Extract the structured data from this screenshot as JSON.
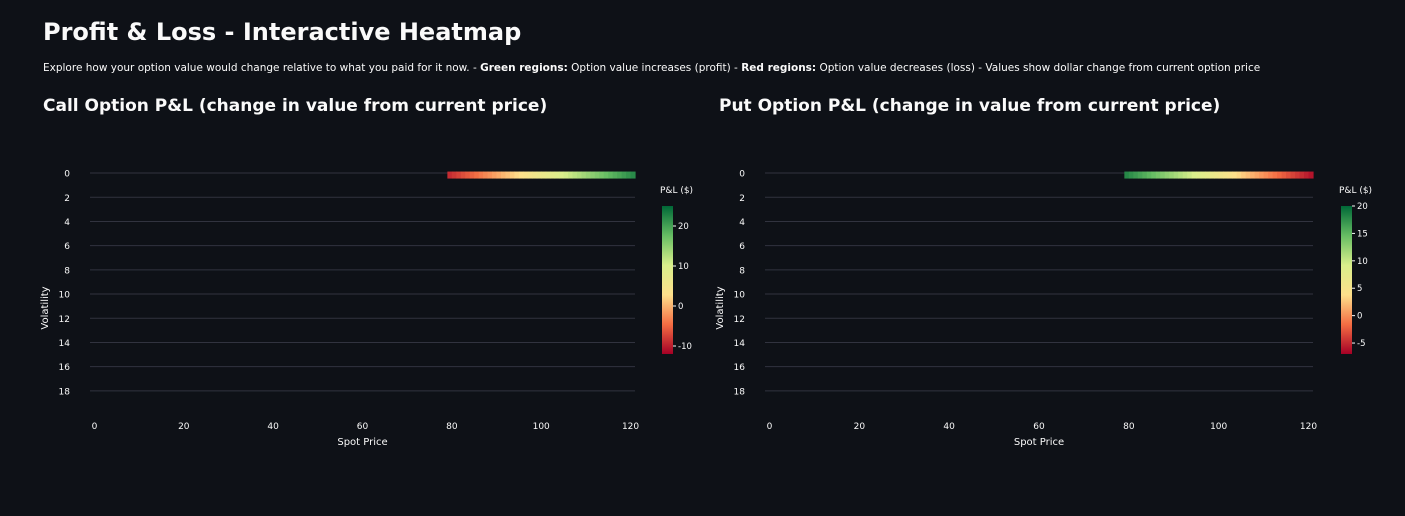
{
  "page": {
    "title": "Profit & Loss - Interactive Heatmap",
    "description": {
      "intro": "Explore how your option value would change relative to what you paid for it now. - ",
      "green_label": "Green regions:",
      "green_text": " Option value increases (profit) - ",
      "red_label": "Red regions:",
      "red_text": " Option value decreases (loss) - Values show dollar change from current option price"
    }
  },
  "chart_data": [
    {
      "type": "heatmap",
      "title": "Call Option P&L (change in value from current price)",
      "xlabel": "Spot Price",
      "ylabel": "Volatility",
      "xlim": [
        -1,
        121
      ],
      "ylim": [
        19.5,
        -0.5
      ],
      "x_ticks": [
        0,
        20,
        40,
        60,
        80,
        100,
        120
      ],
      "y_ticks": [
        0,
        2,
        4,
        6,
        8,
        10,
        12,
        14,
        16,
        18
      ],
      "colorbar": {
        "title": "P&L ($)",
        "ticks": [
          -10,
          0,
          10,
          20
        ],
        "range": [
          -12,
          25
        ],
        "colors": [
          "#a50026",
          "#f46d43",
          "#fee08b",
          "#d9ef8b",
          "#66bd63",
          "#006837"
        ]
      },
      "strip": {
        "y": 0,
        "x_start": 79,
        "x_end": 121,
        "value_start": -9,
        "value_end": 22
      },
      "grid": true
    },
    {
      "type": "heatmap",
      "title": "Put Option P&L (change in value from current price)",
      "xlabel": "Spot Price",
      "ylabel": "Volatility",
      "xlim": [
        -1,
        121
      ],
      "ylim": [
        19.5,
        -0.5
      ],
      "x_ticks": [
        0,
        20,
        40,
        60,
        80,
        100,
        120
      ],
      "y_ticks": [
        0,
        2,
        4,
        6,
        8,
        10,
        12,
        14,
        16,
        18
      ],
      "colorbar": {
        "title": "P&L ($)",
        "ticks": [
          -5,
          0,
          5,
          10,
          15,
          20
        ],
        "range": [
          -7,
          20
        ],
        "colors": [
          "#a50026",
          "#f46d43",
          "#fee08b",
          "#d9ef8b",
          "#66bd63",
          "#006837"
        ]
      },
      "strip": {
        "y": 0,
        "x_start": 79,
        "x_end": 121,
        "value_start": 18,
        "value_end": -6
      },
      "grid": true
    }
  ]
}
